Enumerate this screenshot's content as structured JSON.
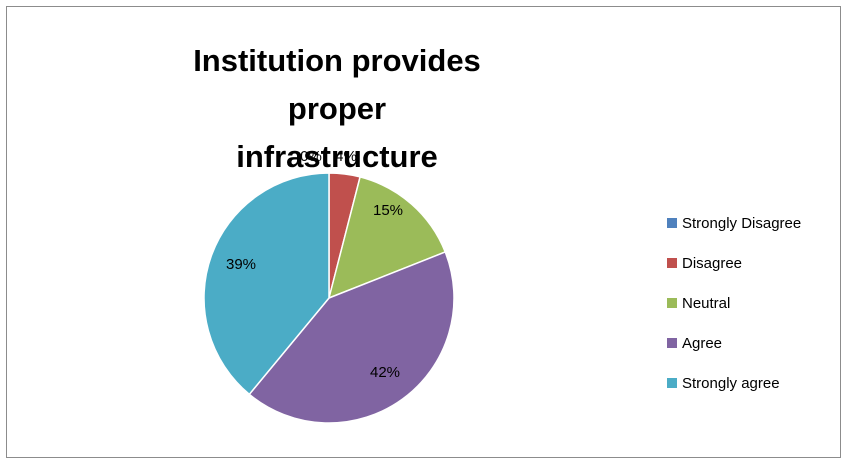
{
  "chart_data": {
    "type": "pie",
    "title_line1": "Institution provides proper",
    "title_line2": "infrastructure",
    "categories": [
      "Strongly Disagree",
      "Disagree",
      "Neutral",
      "Agree",
      "Strongly agree"
    ],
    "values": [
      0,
      4,
      15,
      42,
      39
    ],
    "data_labels": [
      "0%",
      "4%",
      "15%",
      "42%",
      "39%"
    ],
    "colors": [
      "#4f81bd",
      "#c0504d",
      "#9bbb59",
      "#8064a2",
      "#4bacc6"
    ],
    "legend_position": "right"
  }
}
